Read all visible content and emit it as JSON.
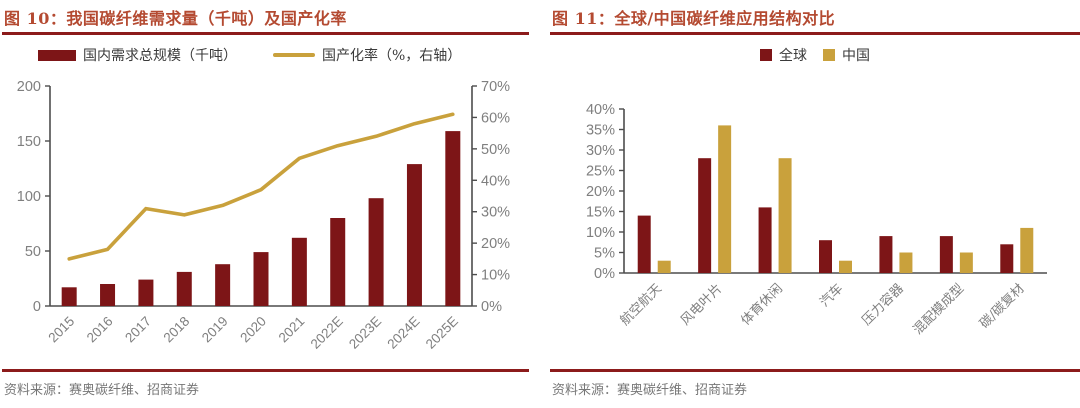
{
  "colors": {
    "title_red": "#B44A31",
    "rule_red": "#8C1B1B",
    "dark_red": "#7D1517",
    "gold": "#C9A13C",
    "axis_label_gray": "#7F7F7F",
    "axis_line": "#4D4D4D",
    "legend_text": "#3A3A3A",
    "source_gray": "#777777"
  },
  "panels": [
    {
      "title": "图 10：我国碳纤维需求量（千吨）及国产化率",
      "source": "资料来源：赛奥碳纤维、招商证券"
    },
    {
      "title": "图 11：全球/中国碳纤维应用结构对比",
      "source": "资料来源：赛奥碳纤维、招商证券"
    }
  ],
  "chart_data": [
    {
      "type": "bar+line combo",
      "title": "我国碳纤维需求量（千吨）及国产化率",
      "categories": [
        "2015",
        "2016",
        "2017",
        "2018",
        "2019",
        "2020",
        "2021",
        "2022E",
        "2023E",
        "2024E",
        "2025E"
      ],
      "series": [
        {
          "name": "国内需求总规模（千吨）",
          "type": "bar",
          "axis": "left",
          "color": "#7D1517",
          "values": [
            17,
            20,
            24,
            31,
            38,
            49,
            62,
            80,
            98,
            129,
            159
          ]
        },
        {
          "name": "国产化率（%，右轴）",
          "type": "line",
          "axis": "right",
          "color": "#C9A13C",
          "values": [
            15,
            18,
            31,
            29,
            32,
            37,
            47,
            51,
            54,
            58,
            61
          ]
        }
      ],
      "left_axis": {
        "min": 0,
        "max": 200,
        "step": 50,
        "suffix": ""
      },
      "right_axis": {
        "min": 0,
        "max": 70,
        "step": 10,
        "suffix": "%"
      },
      "legend_position": "top",
      "grid": false
    },
    {
      "type": "bar",
      "title": "全球/中国碳纤维应用结构对比",
      "categories": [
        "航空航天",
        "风电叶片",
        "体育休闲",
        "汽车",
        "压力容器",
        "混配模成型",
        "碳/碳复材"
      ],
      "series": [
        {
          "name": "全球",
          "color": "#7D1517",
          "values": [
            14,
            28,
            16,
            8,
            9,
            9,
            7
          ]
        },
        {
          "name": "中国",
          "color": "#C9A13C",
          "values": [
            3,
            36,
            28,
            3,
            5,
            5,
            11
          ]
        }
      ],
      "y_axis": {
        "min": 0,
        "max": 40,
        "step": 5,
        "suffix": "%"
      },
      "legend_position": "top",
      "grid": false
    }
  ]
}
